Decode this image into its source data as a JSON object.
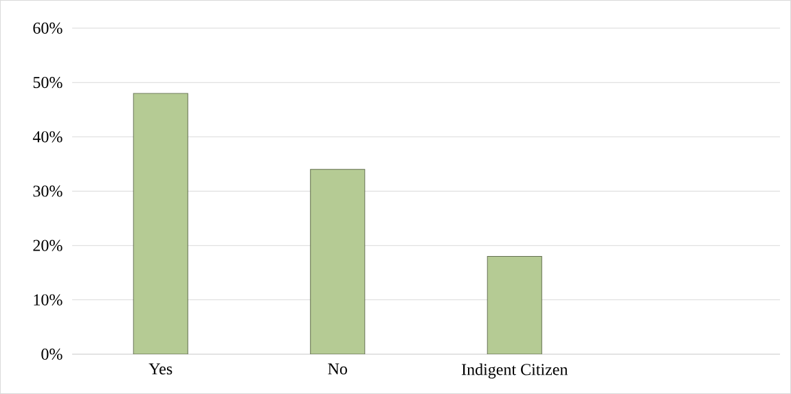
{
  "chart_data": {
    "type": "bar",
    "categories": [
      "Yes",
      "No",
      "Indigent Citizen",
      null
    ],
    "values": [
      48,
      34,
      18,
      null
    ],
    "color": "#b5cb94",
    "ylim": [
      0,
      60
    ],
    "yticks": [
      {
        "value": 0,
        "label": "0%"
      },
      {
        "value": 10,
        "label": "10%"
      },
      {
        "value": 20,
        "label": "20%"
      },
      {
        "value": 30,
        "label": "30%"
      },
      {
        "value": 40,
        "label": "40%"
      },
      {
        "value": 50,
        "label": "50%"
      },
      {
        "value": 60,
        "label": "60%"
      }
    ],
    "grid": "y"
  }
}
